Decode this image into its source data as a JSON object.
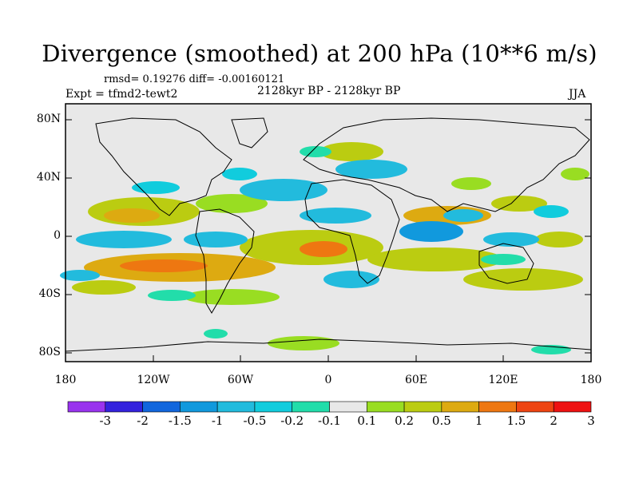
{
  "title": "Divergence (smoothed) at 200 hPa (10**6 m/s)",
  "stats": "rmsd= 0.19276 diff= -0.00160121",
  "experiment": "Expt = tfmd2-tewt2",
  "period": "2128kyr BP - 2128kyr BP",
  "season": "JJA",
  "lat_labels": [
    "80N",
    "40N",
    "0",
    "40S",
    "80S"
  ],
  "lon_labels": [
    "180",
    "120W",
    "60W",
    "0",
    "60E",
    "120E",
    "180"
  ],
  "colorbar": {
    "labels": [
      "-3",
      "-2",
      "-1.5",
      "-1",
      "-0.5",
      "-0.2",
      "-0.1",
      "0.1",
      "0.2",
      "0.5",
      "1",
      "1.5",
      "2",
      "3"
    ],
    "colors": [
      "#9933ee",
      "#3322dd",
      "#1166dd",
      "#1199dd",
      "#22bbdd",
      "#11ccdd",
      "#22ddaa",
      "#e8e8e8",
      "#99dd22",
      "#bbcc11",
      "#ddaa11",
      "#ee7711",
      "#ee4411",
      "#ee1111"
    ]
  }
}
